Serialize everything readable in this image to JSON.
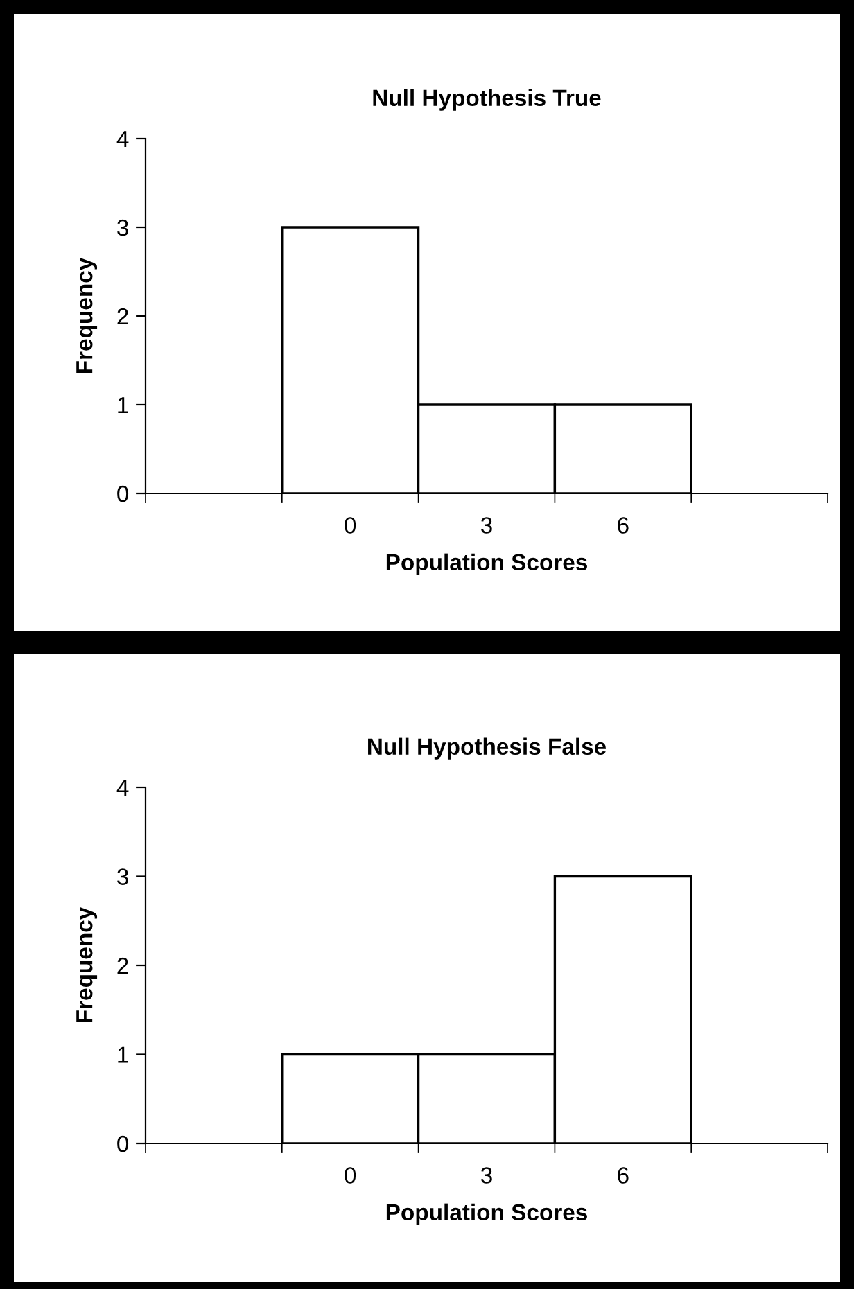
{
  "chart_data": [
    {
      "type": "bar",
      "title": "Null Hypothesis True",
      "xlabel": "Population Scores",
      "ylabel": "Frequency",
      "categories": [
        null,
        "0",
        "3",
        "6",
        null
      ],
      "values": [
        null,
        3,
        1,
        1,
        null
      ],
      "color": "#ffffff",
      "ylim": [
        0,
        4
      ],
      "yticks": [
        0,
        1,
        2,
        3,
        4
      ],
      "grid": false,
      "legend": false
    },
    {
      "type": "bar",
      "title": "Null Hypothesis False",
      "xlabel": "Population Scores",
      "ylabel": "Frequency",
      "categories": [
        null,
        "0",
        "3",
        "6",
        null
      ],
      "values": [
        null,
        1,
        1,
        3,
        null
      ],
      "color": "#ffffff",
      "ylim": [
        0,
        4
      ],
      "yticks": [
        0,
        1,
        2,
        3,
        4
      ],
      "grid": false,
      "legend": false
    }
  ]
}
